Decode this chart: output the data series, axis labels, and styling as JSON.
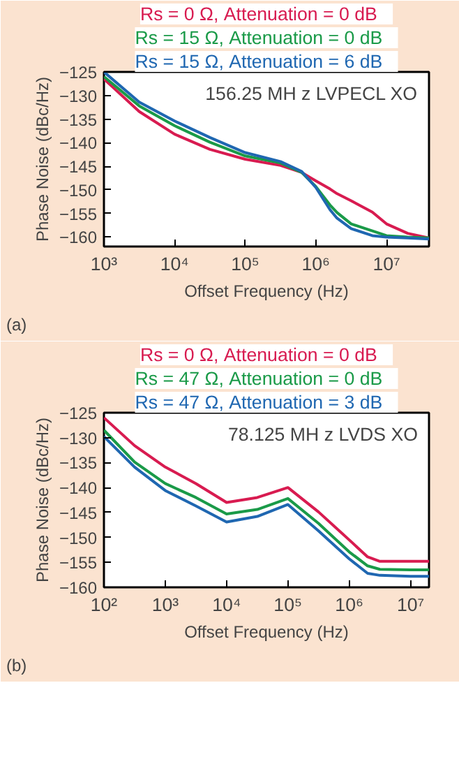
{
  "chart_data": [
    {
      "type": "line",
      "title": "156.25 MH z LVPECL XO",
      "xlabel": "Offset Frequency (Hz)",
      "ylabel": "Phase Noise (dBc/Hz)",
      "annotations": [
        "(a)"
      ],
      "x": [
        1000,
        3162,
        10000,
        31623,
        100000,
        316228,
        630957,
        1000000,
        1584893,
        1995262,
        3162278,
        6309573,
        10000000,
        19952623,
        40000000
      ],
      "series": [
        {
          "name": "Rs = 0  Ω, Attenuation   = 0 dB",
          "color": "#d81b50",
          "values": [
            -126.5,
            -133.4,
            -138.2,
            -141.4,
            -143.5,
            -144.8,
            -146.3,
            -148.1,
            -149.8,
            -150.8,
            -152.3,
            -154.7,
            -157.2,
            -159.2,
            -160.2
          ]
        },
        {
          "name": "Rs = 15  Ω, Attenuation   = 0 dB",
          "color": "#1a9a48",
          "values": [
            -126,
            -132.2,
            -136.4,
            -139.9,
            -142.8,
            -144.3,
            -146.3,
            -149.3,
            -153.2,
            -154.8,
            -157.2,
            -158.7,
            -159.7,
            -160,
            -160.2
          ]
        },
        {
          "name": "Rs = 15  Ω, Attenuation   = 6 dB",
          "color": "#1f67b1",
          "values": [
            -125,
            -131.4,
            -135.4,
            -138.9,
            -142.1,
            -144,
            -146.1,
            -149.5,
            -154.2,
            -156,
            -158.2,
            -159.7,
            -160,
            -160.2,
            -160.4
          ]
        }
      ],
      "xlim": [
        1000,
        40000000
      ],
      "ylim": [
        -162,
        -125
      ],
      "xticks": [
        {
          "value": 1000,
          "label": "10³"
        },
        {
          "value": 10000,
          "label": "10⁴"
        },
        {
          "value": 100000,
          "label": "10⁵"
        },
        {
          "value": 1000000,
          "label": "10⁶"
        },
        {
          "value": 10000000,
          "label": "10⁷"
        }
      ],
      "yticks": [
        -125,
        -130,
        -135,
        -140,
        -145,
        -150,
        -155,
        -160
      ],
      "log": "x",
      "grid": false
    },
    {
      "type": "line",
      "title": "78.125 MH z LVDS XO",
      "xlabel": "Offset Frequency (Hz)",
      "ylabel": "Phase Noise (dBc/Hz)",
      "annotations": [
        "(b)"
      ],
      "x": [
        100,
        316,
        1000,
        3162,
        10000,
        31623,
        100000,
        316228,
        1000000,
        1995262,
        3162278,
        10000000,
        20000000
      ],
      "series": [
        {
          "name": "Rs = 0  Ω, Attenuation   = 0 dB",
          "color": "#d81b50",
          "values": [
            -126,
            -131.6,
            -135.9,
            -139.2,
            -143,
            -142,
            -140,
            -144.9,
            -150.5,
            -153.9,
            -154.8,
            -154.8,
            -154.8
          ]
        },
        {
          "name": "Rs = 47  Ω, Attenuation   = 0 dB",
          "color": "#1a9a48",
          "values": [
            -128.5,
            -134.9,
            -139.2,
            -142,
            -145.3,
            -144.4,
            -142.2,
            -147.2,
            -152.9,
            -155.7,
            -156.4,
            -156.5,
            -156.5
          ]
        },
        {
          "name": "Rs = 47  Ω, Attenuation   = 3 dB",
          "color": "#1f67b1",
          "values": [
            -129.8,
            -135.9,
            -140.6,
            -143.7,
            -146.9,
            -145.8,
            -143.4,
            -148.7,
            -154.3,
            -157.2,
            -157.6,
            -157.8,
            -157.8
          ]
        }
      ],
      "xlim": [
        100,
        20000000
      ],
      "ylim": [
        -160,
        -125
      ],
      "xticks": [
        {
          "value": 100,
          "label": "10²"
        },
        {
          "value": 1000,
          "label": "10³"
        },
        {
          "value": 10000,
          "label": "10⁴"
        },
        {
          "value": 100000,
          "label": "10⁵"
        },
        {
          "value": 1000000,
          "label": "10⁶"
        },
        {
          "value": 10000000,
          "label": "10⁷"
        }
      ],
      "yticks": [
        -125,
        -130,
        -135,
        -140,
        -145,
        -150,
        -155,
        -160
      ],
      "log": "x",
      "grid": false
    }
  ]
}
